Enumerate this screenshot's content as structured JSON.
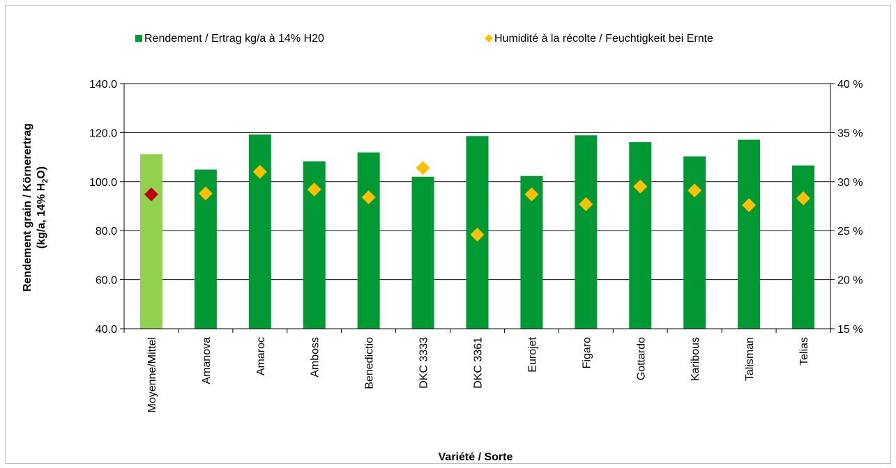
{
  "chart_data": {
    "type": "bar",
    "categories": [
      "Moyenne/Mittel",
      "Amanova",
      "Amaroc",
      "Amboss",
      "Benedictio",
      "DKC 3333",
      "DKC 3361",
      "Eurojet",
      "Figaro",
      "Gottardo",
      "Karibous",
      "Talisman",
      "Telias"
    ],
    "series": [
      {
        "name": "Rendement / Ertrag kg/a à 14% H20",
        "kind": "bar",
        "axis": "left",
        "values": [
          111.2,
          104.9,
          119.2,
          108.3,
          111.9,
          102.0,
          118.6,
          102.3,
          118.9,
          116.1,
          110.3,
          117.1,
          106.6
        ]
      },
      {
        "name": "Humidité à la récolte / Feuchtigkeit bei Ernte",
        "kind": "scatter",
        "marker": "diamond",
        "axis": "right",
        "values": [
          28.7,
          28.8,
          31.0,
          29.2,
          28.4,
          31.4,
          24.6,
          28.7,
          27.7,
          29.5,
          29.1,
          27.6,
          28.3
        ]
      }
    ],
    "colors": {
      "bar": "#009933",
      "bar_highlight": "#92d050",
      "marker": "#ffc000",
      "marker_highlight": "#c00000",
      "gridline": "#000000"
    },
    "ylim": [
      40,
      140
    ],
    "y_ticks": [
      "140.0",
      "120.0",
      "100.0",
      "80.0",
      "60.0",
      "40.0"
    ],
    "y_tick_values": [
      140,
      120,
      100,
      80,
      60,
      40
    ],
    "y2lim": [
      15,
      40
    ],
    "y2_ticks": [
      "40 %",
      "35 %",
      "30 %",
      "25 %",
      "20 %",
      "15 %"
    ],
    "y2_tick_values": [
      40,
      35,
      30,
      25,
      20,
      15
    ],
    "ylabel_line1": "Rendement grain / Körnerertrag",
    "ylabel_line2_pre": "(kg/a, 14% H",
    "ylabel_line2_sub": "2",
    "ylabel_line2_post": "O)",
    "xlabel": "Variété / Sorte",
    "legend_position": "top",
    "grid": "horizontal"
  }
}
